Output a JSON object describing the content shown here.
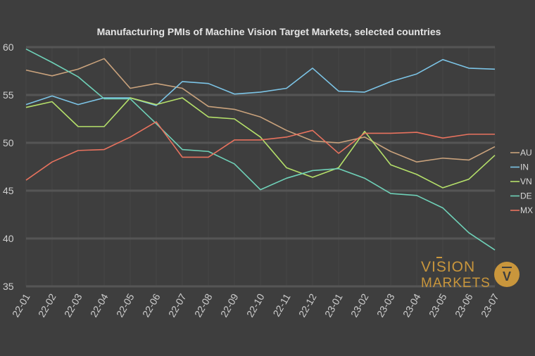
{
  "chart_data": {
    "type": "line",
    "title": "Manufacturing PMIs of Machine Vision Target Markets, selected  countries",
    "xlabel": "",
    "ylabel": "",
    "ylim": [
      35,
      60
    ],
    "yticks": [
      "35",
      "40",
      "45",
      "50",
      "55",
      "60"
    ],
    "grid": true,
    "legend_position": "right",
    "categories": [
      "22-01",
      "22-02",
      "22-03",
      "22-04",
      "22-05",
      "22-06",
      "22-07",
      "22-08",
      "22-09",
      "22-10",
      "22-11",
      "22-12",
      "23-01",
      "23-02",
      "23-03",
      "23-04",
      "23-05",
      "23-06",
      "23-07"
    ],
    "series": [
      {
        "name": "AU",
        "color": "#c9a27c",
        "values": [
          57.6,
          57.0,
          57.7,
          58.8,
          55.7,
          56.2,
          55.7,
          53.8,
          53.5,
          52.7,
          51.3,
          50.2,
          50.0,
          50.6,
          49.1,
          48.0,
          48.4,
          48.2,
          49.6
        ]
      },
      {
        "name": "IN",
        "color": "#7cc4e6",
        "values": [
          54.0,
          54.9,
          54.0,
          54.7,
          54.7,
          53.9,
          56.4,
          56.2,
          55.1,
          55.3,
          55.7,
          57.8,
          55.4,
          55.3,
          56.4,
          57.2,
          58.7,
          57.8,
          57.7
        ]
      },
      {
        "name": "VN",
        "color": "#b5e06a",
        "values": [
          53.7,
          54.3,
          51.7,
          51.7,
          54.7,
          54.0,
          54.7,
          52.7,
          52.5,
          50.6,
          47.4,
          46.4,
          47.4,
          51.2,
          47.7,
          46.7,
          45.3,
          46.2,
          48.7
        ]
      },
      {
        "name": "DE",
        "color": "#6fd1b8",
        "values": [
          59.8,
          58.4,
          56.9,
          54.6,
          54.6,
          52.0,
          49.3,
          49.1,
          47.8,
          45.1,
          46.3,
          47.1,
          47.3,
          46.3,
          44.7,
          44.5,
          43.2,
          40.6,
          38.8
        ]
      },
      {
        "name": "MX",
        "color": "#e8725e",
        "values": [
          46.1,
          48.0,
          49.2,
          49.3,
          50.6,
          52.2,
          48.5,
          48.5,
          50.3,
          50.3,
          50.6,
          51.3,
          48.9,
          51.0,
          51.0,
          51.1,
          50.5,
          50.9,
          50.9
        ]
      }
    ]
  },
  "logo": {
    "line1": "VISION",
    "line2": "MARKETS",
    "badge": "V",
    "color": "#c9963c"
  }
}
